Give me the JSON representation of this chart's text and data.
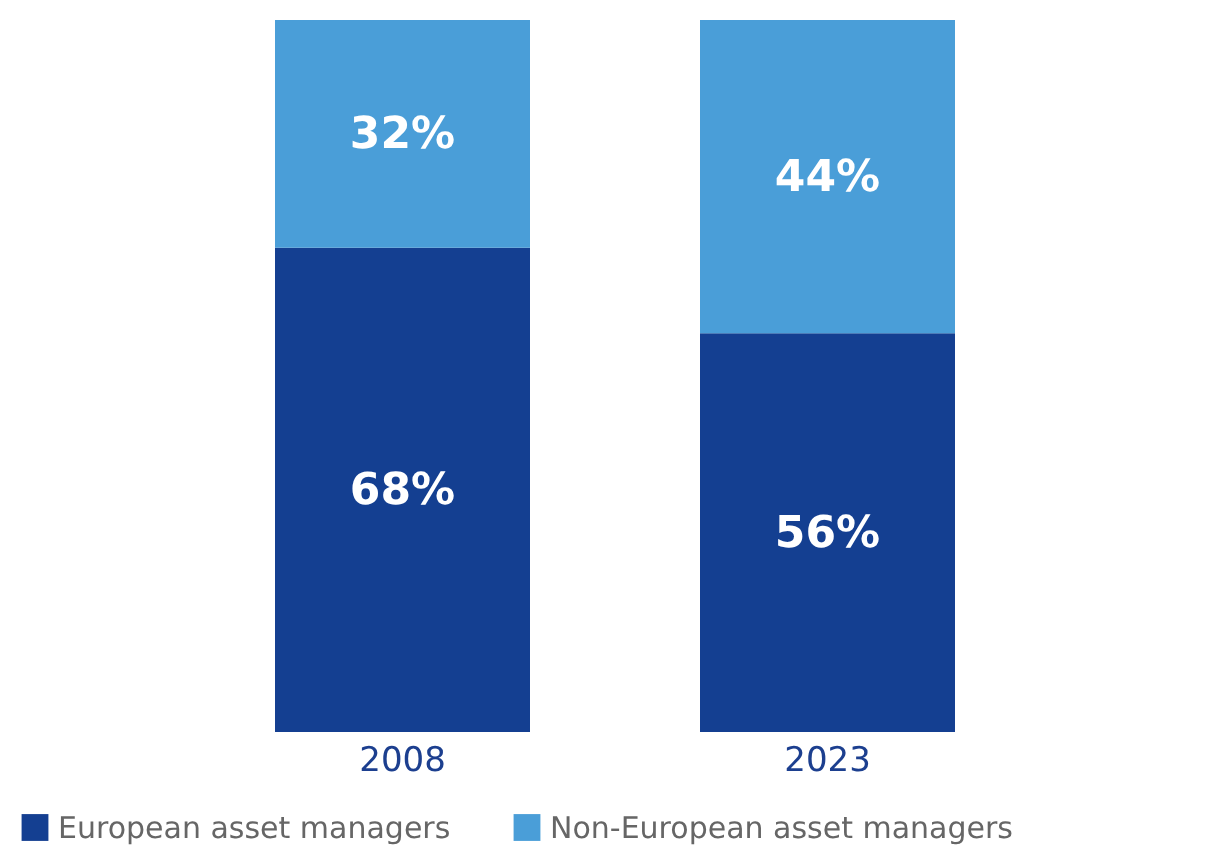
{
  "chart_data": {
    "type": "bar",
    "stacked": true,
    "categories": [
      "2008",
      "2023"
    ],
    "series": [
      {
        "name": "European asset managers",
        "color": "#143f91",
        "values": [
          68,
          56
        ],
        "value_labels": [
          "68%",
          "56%"
        ]
      },
      {
        "name": "Non-European asset managers",
        "color": "#4a9ed8",
        "values": [
          32,
          44
        ],
        "value_labels": [
          "32%",
          "44%"
        ]
      }
    ],
    "legend": "bottom",
    "grid": false,
    "tick_labels": "x"
  }
}
